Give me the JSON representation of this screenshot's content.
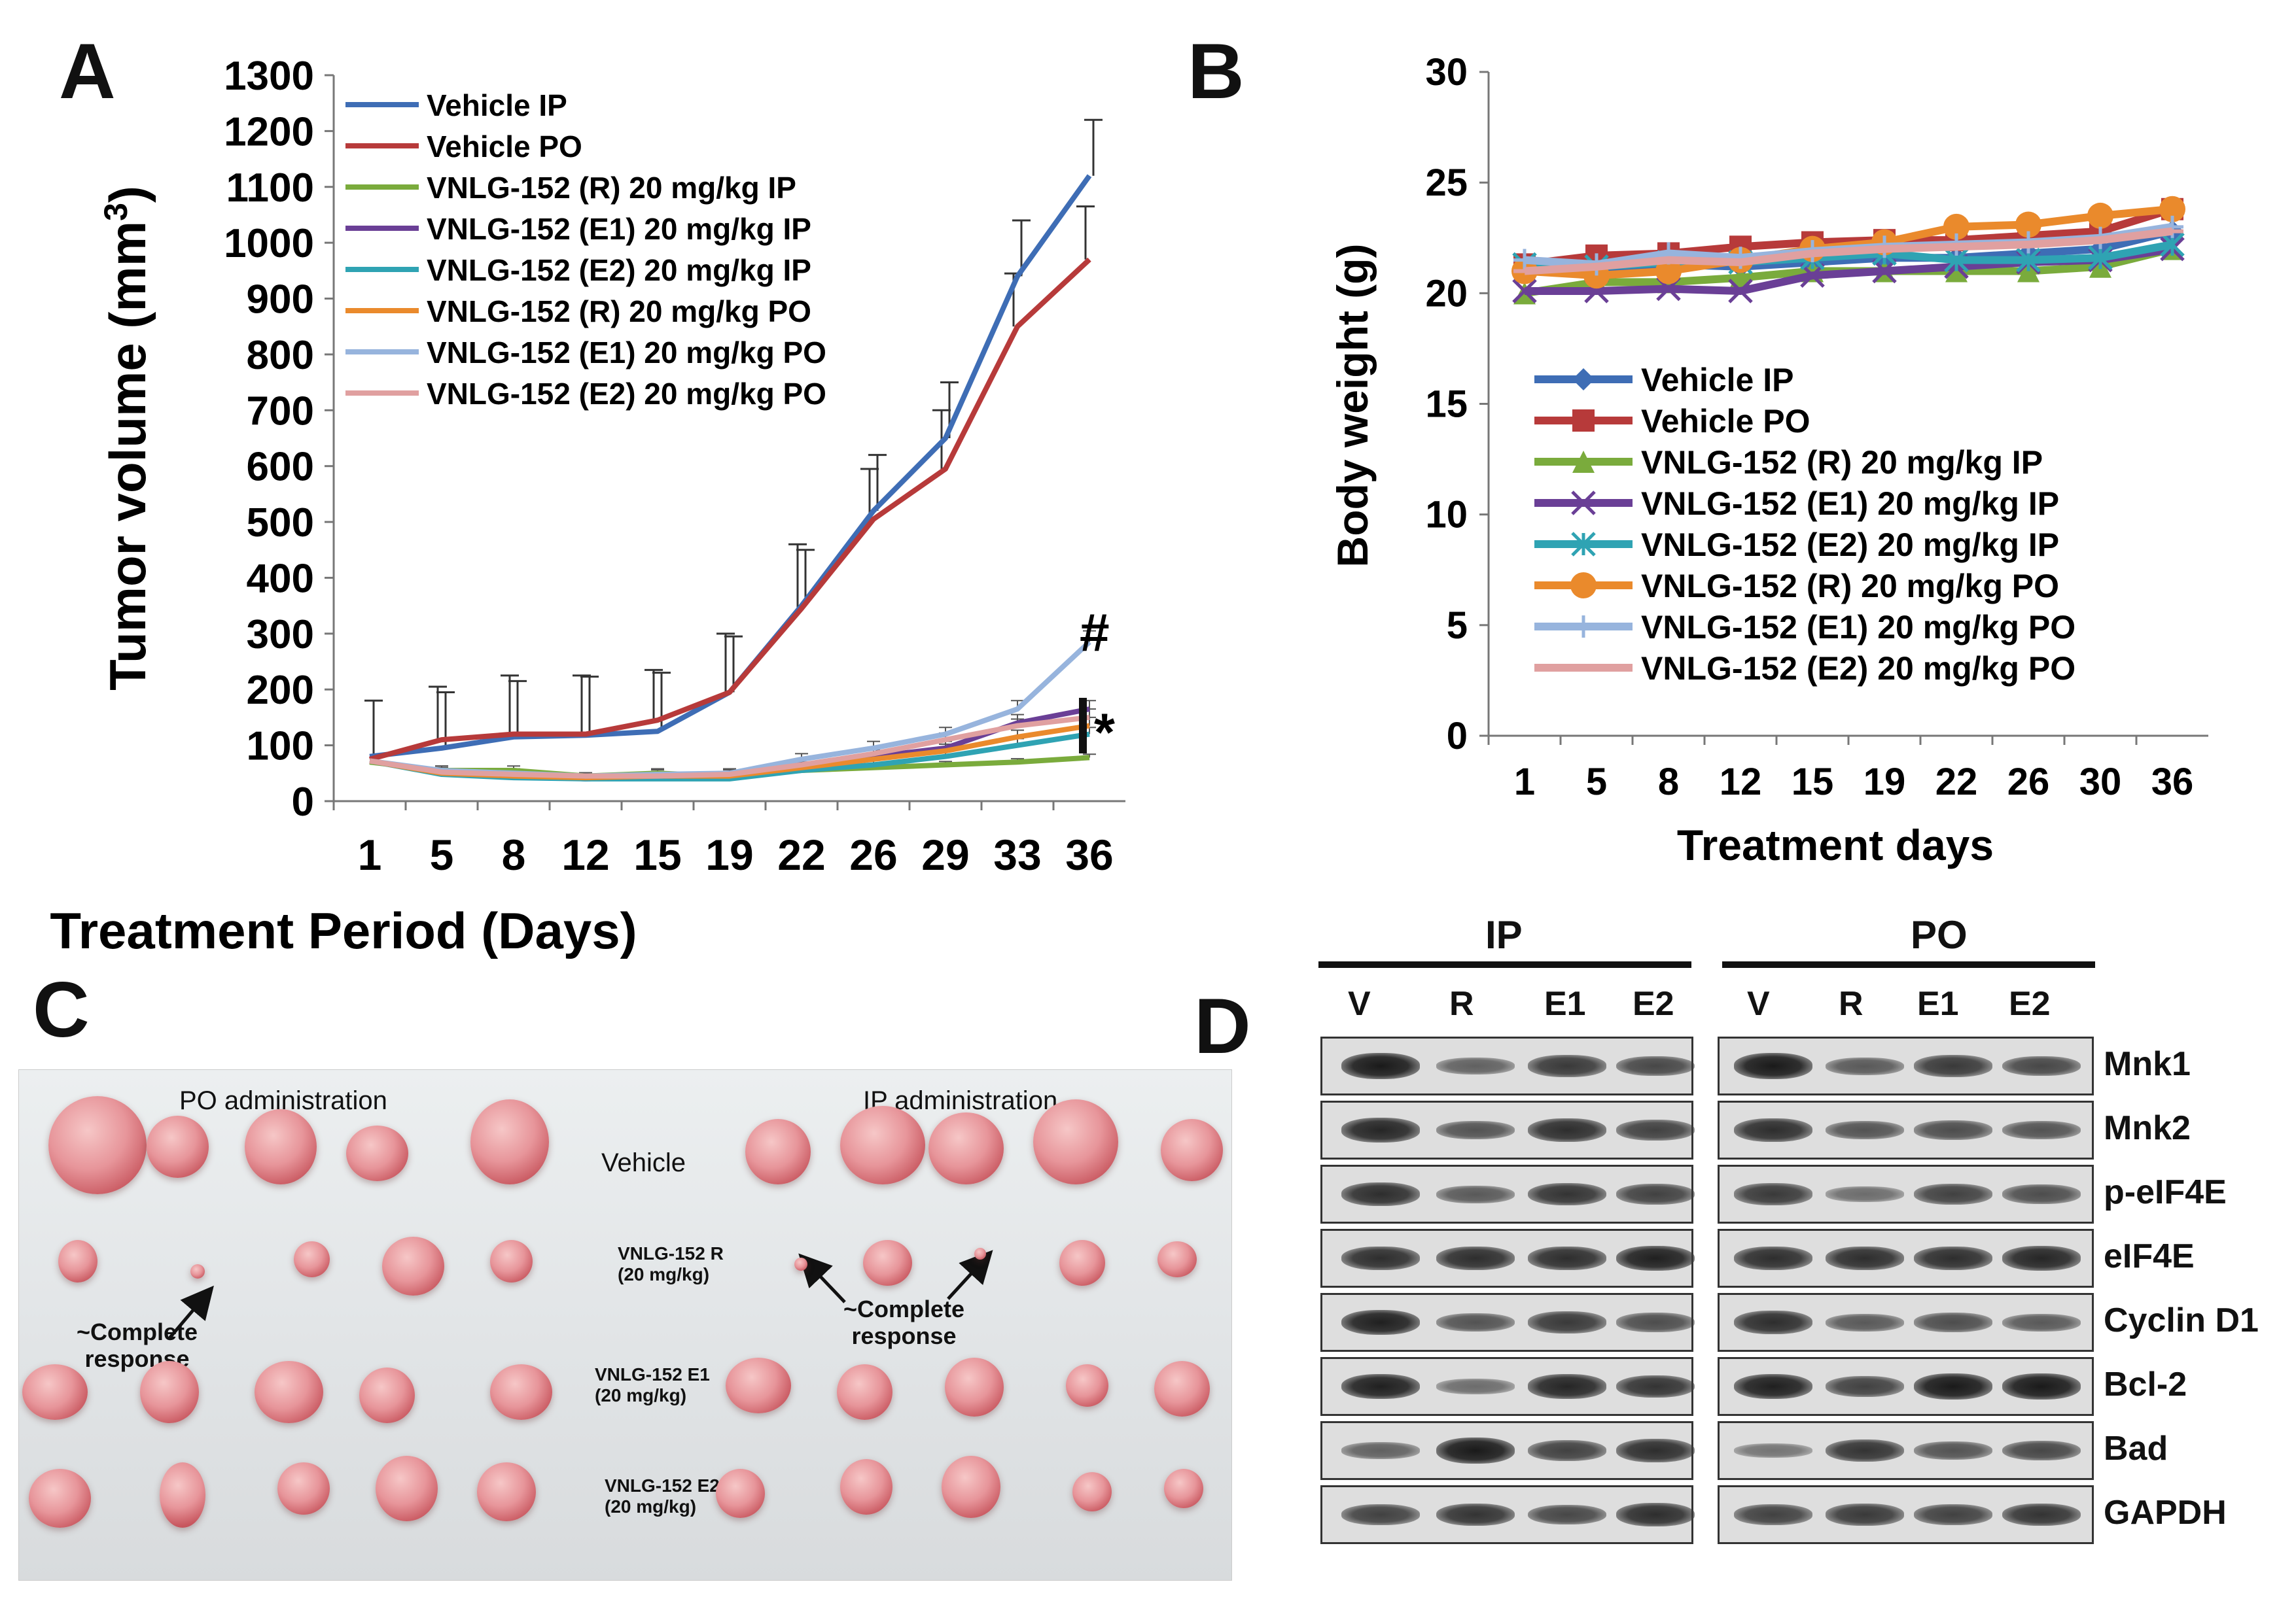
{
  "panels": {
    "a": "A",
    "b": "B",
    "c": "C",
    "d": "D"
  },
  "chart_data": [
    {
      "type": "line",
      "panel": "A",
      "title": "",
      "xlabel": "Treatment Period (Days)",
      "ylabel": "Tumor volume (mm³)",
      "ylabel_main": "Tumor volume (mm",
      "ylabel_sup": "3",
      "ylabel_end": ")",
      "categories": [
        "1",
        "5",
        "8",
        "12",
        "15",
        "19",
        "22",
        "26",
        "29",
        "33",
        "36"
      ],
      "ylim": [
        0,
        1300
      ],
      "yticks": [
        "0",
        "100",
        "200",
        "300",
        "400",
        "500",
        "600",
        "700",
        "800",
        "900",
        "1000",
        "1100",
        "1200",
        "1300"
      ],
      "legend_position": "top-left",
      "annotations": {
        "hash": "#",
        "star": "*"
      },
      "series": [
        {
          "name": "Vehicle IP",
          "color": "#3e6db5",
          "values": [
            80,
            95,
            115,
            118,
            125,
            195,
            350,
            520,
            650,
            940,
            1120
          ],
          "errors": [
            100,
            100,
            100,
            105,
            105,
            100,
            100,
            100,
            100,
            100,
            100
          ]
        },
        {
          "name": "Vehicle PO",
          "color": "#b73a3a",
          "values": [
            75,
            110,
            120,
            120,
            145,
            195,
            345,
            505,
            595,
            850,
            970
          ],
          "errors": [
            0,
            95,
            105,
            105,
            90,
            105,
            115,
            90,
            105,
            95,
            95
          ]
        },
        {
          "name": "VNLG-152 (R) 20 mg/kg IP",
          "color": "#7aab3c",
          "values": [
            70,
            55,
            55,
            45,
            50,
            45,
            55,
            60,
            65,
            70,
            78
          ],
          "errors": [
            0,
            8,
            8,
            6,
            8,
            6,
            6,
            6,
            6,
            6,
            6
          ]
        },
        {
          "name": "VNLG-152 (E1) 20 mg/kg IP",
          "color": "#6a3f96",
          "values": [
            72,
            50,
            45,
            40,
            45,
            50,
            65,
            80,
            95,
            140,
            165
          ],
          "errors": [
            0,
            8,
            8,
            6,
            8,
            8,
            10,
            12,
            12,
            15,
            15
          ]
        },
        {
          "name": "VNLG-152 (E2) 20 mg/kg IP",
          "color": "#2fa3b3",
          "values": [
            72,
            48,
            42,
            40,
            40,
            40,
            55,
            65,
            80,
            100,
            120
          ],
          "errors": [
            0,
            8,
            8,
            6,
            6,
            6,
            8,
            8,
            10,
            12,
            12
          ]
        },
        {
          "name": "VNLG-152 (R) 20 mg/kg PO",
          "color": "#ea8a2c",
          "values": [
            72,
            50,
            45,
            42,
            45,
            45,
            60,
            75,
            90,
            115,
            135
          ],
          "errors": [
            0,
            8,
            8,
            6,
            6,
            8,
            10,
            10,
            12,
            12,
            15
          ]
        },
        {
          "name": "VNLG-152 (E1) 20 mg/kg PO",
          "color": "#97b4dd",
          "values": [
            72,
            55,
            50,
            45,
            48,
            50,
            75,
            95,
            120,
            165,
            285
          ],
          "errors": [
            0,
            8,
            8,
            6,
            8,
            8,
            10,
            12,
            12,
            15,
            20
          ]
        },
        {
          "name": "VNLG-152 (E2) 20 mg/kg PO",
          "color": "#e0a0a0",
          "values": [
            72,
            52,
            48,
            45,
            45,
            48,
            65,
            85,
            110,
            135,
            150
          ],
          "errors": [
            0,
            8,
            8,
            6,
            6,
            8,
            10,
            10,
            12,
            12,
            15
          ]
        }
      ]
    },
    {
      "type": "line",
      "panel": "B",
      "title": "",
      "xlabel": "Treatment days",
      "ylabel": "Body weight (g)",
      "categories": [
        "1",
        "5",
        "8",
        "12",
        "15",
        "19",
        "22",
        "26",
        "30",
        "36"
      ],
      "ylim": [
        0,
        30
      ],
      "yticks": [
        "0",
        "5",
        "10",
        "15",
        "20",
        "25",
        "30"
      ],
      "legend_position": "center-left",
      "series": [
        {
          "name": "Vehicle IP",
          "color": "#3e6db5",
          "marker": "diamond",
          "values": [
            21.2,
            21.0,
            21.3,
            21.2,
            21.4,
            21.6,
            21.6,
            21.8,
            22.0,
            22.8
          ]
        },
        {
          "name": "Vehicle PO",
          "color": "#b73a3a",
          "marker": "square",
          "values": [
            21.3,
            21.7,
            21.8,
            22.1,
            22.3,
            22.4,
            22.4,
            22.6,
            22.8,
            23.8
          ]
        },
        {
          "name": "VNLG-152 (R) 20 mg/kg IP",
          "color": "#7aab3c",
          "marker": "triangle",
          "values": [
            20.0,
            20.5,
            20.5,
            20.7,
            21.0,
            21.0,
            21.0,
            21.0,
            21.2,
            22.0
          ]
        },
        {
          "name": "VNLG-152 (E1) 20 mg/kg IP",
          "color": "#6a3f96",
          "marker": "x",
          "values": [
            20.1,
            20.1,
            20.2,
            20.1,
            20.8,
            21.0,
            21.2,
            21.4,
            21.5,
            22.0
          ]
        },
        {
          "name": "VNLG-152 (E2) 20 mg/kg IP",
          "color": "#2fa3b3",
          "marker": "star",
          "values": [
            21.3,
            21.2,
            21.4,
            21.4,
            21.6,
            21.8,
            21.5,
            21.5,
            21.6,
            22.2
          ]
        },
        {
          "name": "VNLG-152 (R) 20 mg/kg PO",
          "color": "#ea8a2c",
          "marker": "circle",
          "values": [
            21.0,
            20.8,
            21.0,
            21.5,
            22.0,
            22.3,
            23.0,
            23.1,
            23.5,
            23.8
          ]
        },
        {
          "name": "VNLG-152 (E1) 20 mg/kg PO",
          "color": "#97b4dd",
          "marker": "plus",
          "values": [
            21.5,
            21.3,
            21.8,
            21.6,
            21.9,
            22.1,
            22.2,
            22.3,
            22.5,
            23.0
          ]
        },
        {
          "name": "VNLG-152 (E2) 20 mg/kg PO",
          "color": "#e0a0a0",
          "marker": "dash",
          "values": [
            21.0,
            21.2,
            21.5,
            21.4,
            21.8,
            22.0,
            22.1,
            22.2,
            22.4,
            22.8
          ]
        }
      ]
    }
  ],
  "photo": {
    "po_admin": "PO administration",
    "ip_admin": "IP administration",
    "vehicle": "Vehicle",
    "r_label_1": "VNLG-152 R",
    "e1_label_1": "VNLG-152 E1",
    "e2_label_1": "VNLG-152 E2",
    "dose": "(20 mg/kg)",
    "complete_1": "~Complete",
    "complete_2": "response"
  },
  "western": {
    "ip": "IP",
    "po": "PO",
    "lanes": [
      "V",
      "R",
      "E1",
      "E2"
    ],
    "proteins": [
      "Mnk1",
      "Mnk2",
      "p-eIF4E",
      "eIF4E",
      "Cyclin D1",
      "Bcl-2",
      "Bad",
      "GAPDH"
    ],
    "ip_intensity": [
      [
        1,
        0.45,
        0.75,
        0.65
      ],
      [
        0.9,
        0.55,
        0.85,
        0.7
      ],
      [
        0.85,
        0.5,
        0.8,
        0.7
      ],
      [
        0.85,
        0.85,
        0.85,
        0.95
      ],
      [
        0.95,
        0.55,
        0.75,
        0.6
      ],
      [
        0.95,
        0.35,
        0.9,
        0.8
      ],
      [
        0.45,
        1,
        0.7,
        0.85
      ],
      [
        0.7,
        0.8,
        0.65,
        0.85
      ]
    ],
    "po_intensity": [
      [
        1,
        0.5,
        0.75,
        0.65
      ],
      [
        0.85,
        0.55,
        0.6,
        0.55
      ],
      [
        0.75,
        0.35,
        0.7,
        0.6
      ],
      [
        0.85,
        0.85,
        0.85,
        0.9
      ],
      [
        0.85,
        0.5,
        0.6,
        0.5
      ],
      [
        0.95,
        0.7,
        1,
        1
      ],
      [
        0.3,
        0.8,
        0.55,
        0.65
      ],
      [
        0.7,
        0.75,
        0.7,
        0.8
      ]
    ]
  }
}
